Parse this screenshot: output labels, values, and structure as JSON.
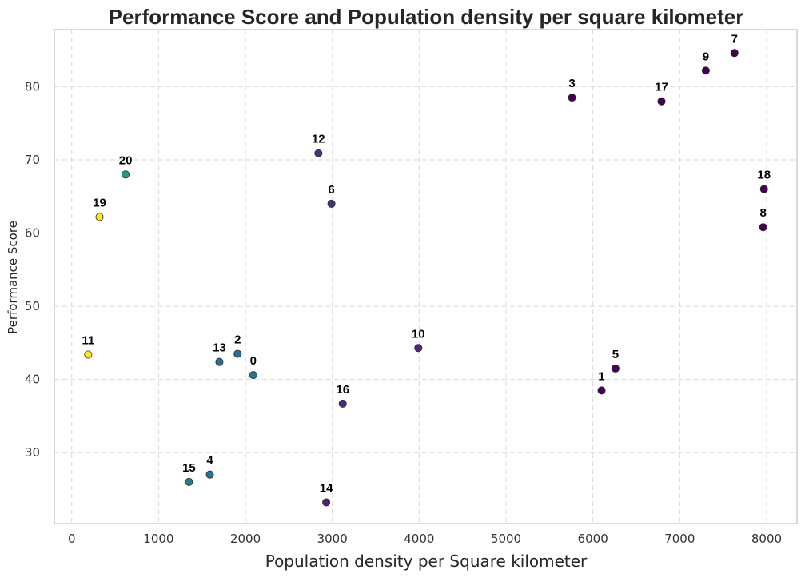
{
  "chart_data": {
    "type": "scatter",
    "title": "Performance Score and Population density per square kilometer",
    "xlabel": "Population density per Square kilometer",
    "ylabel": "Performance Score",
    "xlim": [
      -200,
      8350
    ],
    "ylim": [
      20.3,
      87.8
    ],
    "xticks": [
      0,
      1000,
      2000,
      3000,
      4000,
      5000,
      6000,
      7000,
      8000
    ],
    "yticks": [
      30,
      40,
      50,
      60,
      70,
      80
    ],
    "grid": true,
    "colormap": "viridis",
    "points": [
      {
        "label": "0",
        "x": 2090,
        "y": 40.6,
        "color": "#2c728e"
      },
      {
        "label": "1",
        "x": 6100,
        "y": 38.5,
        "color": "#440154"
      },
      {
        "label": "2",
        "x": 1910,
        "y": 43.5,
        "color": "#31688e"
      },
      {
        "label": "3",
        "x": 5760,
        "y": 78.5,
        "color": "#440154"
      },
      {
        "label": "4",
        "x": 1590,
        "y": 27.0,
        "color": "#2c728e"
      },
      {
        "label": "5",
        "x": 6260,
        "y": 41.5,
        "color": "#440154"
      },
      {
        "label": "6",
        "x": 2990,
        "y": 64.0,
        "color": "#46327e"
      },
      {
        "label": "7",
        "x": 7630,
        "y": 84.6,
        "color": "#440154"
      },
      {
        "label": "8",
        "x": 7960,
        "y": 60.8,
        "color": "#440154"
      },
      {
        "label": "9",
        "x": 7300,
        "y": 82.2,
        "color": "#440154"
      },
      {
        "label": "10",
        "x": 3990,
        "y": 44.3,
        "color": "#482878"
      },
      {
        "label": "11",
        "x": 190,
        "y": 43.4,
        "color": "#fde725"
      },
      {
        "label": "12",
        "x": 2840,
        "y": 70.9,
        "color": "#463480"
      },
      {
        "label": "13",
        "x": 1700,
        "y": 42.4,
        "color": "#2c718e"
      },
      {
        "label": "14",
        "x": 2930,
        "y": 23.2,
        "color": "#482576"
      },
      {
        "label": "15",
        "x": 1350,
        "y": 26.0,
        "color": "#2a788e"
      },
      {
        "label": "16",
        "x": 3120,
        "y": 36.7,
        "color": "#472d7b"
      },
      {
        "label": "17",
        "x": 6790,
        "y": 78.0,
        "color": "#440154"
      },
      {
        "label": "18",
        "x": 7970,
        "y": 66.0,
        "color": "#440154"
      },
      {
        "label": "19",
        "x": 320,
        "y": 62.2,
        "color": "#fde725"
      },
      {
        "label": "20",
        "x": 620,
        "y": 68.0,
        "color": "#1fa187"
      }
    ]
  }
}
